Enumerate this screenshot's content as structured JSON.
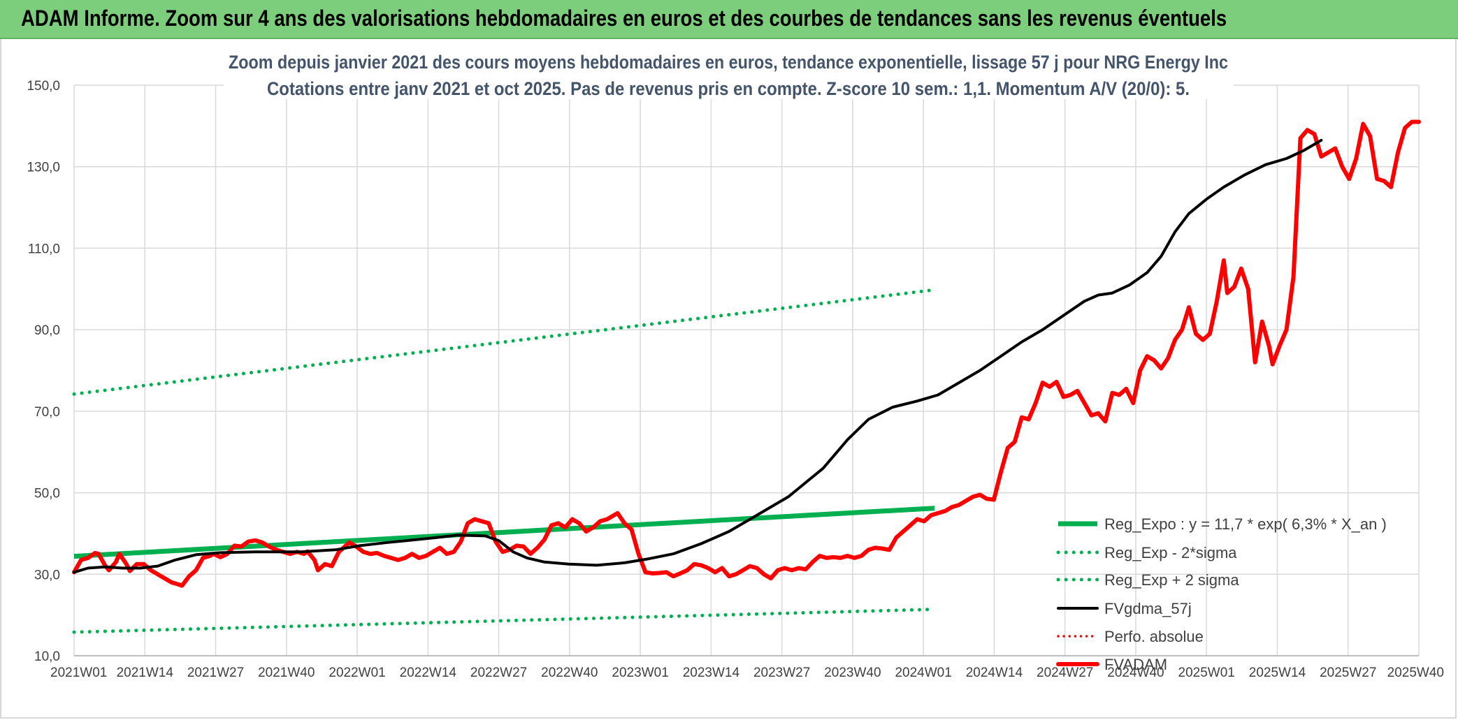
{
  "header": {
    "title": "ADAM Informe. Zoom sur 4 ans des valorisations hebdomadaires en euros et des courbes de tendances sans les revenus éventuels"
  },
  "chart_data": {
    "type": "line",
    "subtitle_line1": "Zoom depuis janvier 2021 des cours moyens hebdomadaires en euros, tendance exponentielle, lissage 57 j pour NRG Energy Inc",
    "subtitle_line2": "Cotations entre janv 2021 et oct 2025. Pas de revenus pris en compte. Z-score 10 sem.: 1,1. Momentum A/V (20/0): 5.",
    "ylim": [
      10,
      150
    ],
    "y_ticks": [
      "150,0",
      "130,0",
      "110,0",
      "90,0",
      "70,0",
      "50,0",
      "30,0",
      "10,0"
    ],
    "y_tick_values": [
      150,
      130,
      110,
      90,
      70,
      50,
      30,
      10
    ],
    "x_ticks": [
      "2021W01",
      "2021W14",
      "2021W27",
      "2021W40",
      "2022W01",
      "2022W14",
      "2022W27",
      "2022W40",
      "2023W01",
      "2023W14",
      "2023W27",
      "2023W40",
      "2024W01",
      "2024W14",
      "2024W27",
      "2024W40",
      "2025W01",
      "2025W14",
      "2025W27",
      "2025W40"
    ],
    "grid": true,
    "legend_position": "bottom-right",
    "colors": {
      "reg_expo": "#00b050",
      "bands": "#00b050",
      "fvgdma": "#000000",
      "perfo": "#ff0000",
      "fvadam": "#ff0000",
      "grid": "#d9d9d9",
      "banner": "#7ccd7c"
    },
    "series": [
      {
        "name": "Reg_Expo : y = 11,7 * exp( 6,3% *  X_an )",
        "style": "solid-thick",
        "points": [
          [
            0,
            34.4
          ],
          [
            247,
            46.2
          ]
        ]
      },
      {
        "name": "Reg_Exp - 2*sigma",
        "style": "dotted",
        "points": [
          [
            0,
            15.8
          ],
          [
            247,
            21.4
          ]
        ]
      },
      {
        "name": "Reg_Exp + 2 sigma",
        "style": "dotted",
        "points": [
          [
            0,
            74.2
          ],
          [
            247,
            99.8
          ]
        ]
      },
      {
        "name": "FVgdma_57j",
        "style": "solid",
        "points": [
          [
            0,
            30.5
          ],
          [
            4,
            31.5
          ],
          [
            9,
            31.8
          ],
          [
            14,
            31.5
          ],
          [
            19,
            31.5
          ],
          [
            24,
            32.0
          ],
          [
            29,
            33.5
          ],
          [
            35,
            34.8
          ],
          [
            42,
            35.3
          ],
          [
            52,
            35.5
          ],
          [
            65,
            35.5
          ],
          [
            75,
            36.0
          ],
          [
            82,
            37.0
          ],
          [
            90,
            37.8
          ],
          [
            95,
            38.2
          ],
          [
            104,
            39.0
          ],
          [
            110,
            39.6
          ],
          [
            118,
            39.4
          ],
          [
            122,
            38.2
          ],
          [
            126,
            35.5
          ],
          [
            130,
            34.0
          ],
          [
            135,
            33.0
          ],
          [
            142,
            32.5
          ],
          [
            150,
            32.2
          ],
          [
            158,
            32.8
          ],
          [
            165,
            33.8
          ],
          [
            172,
            35.0
          ],
          [
            180,
            37.5
          ],
          [
            188,
            40.5
          ],
          [
            195,
            44.0
          ],
          [
            205,
            49.0
          ],
          [
            215,
            56.0
          ],
          [
            222,
            63.0
          ],
          [
            228,
            68.0
          ],
          [
            235,
            71.0
          ],
          [
            242,
            72.5
          ],
          [
            248,
            74.0
          ],
          [
            254,
            77.0
          ],
          [
            260,
            80.0
          ],
          [
            266,
            83.5
          ],
          [
            272,
            87.0
          ],
          [
            278,
            90.0
          ],
          [
            284,
            93.5
          ],
          [
            290,
            97.0
          ],
          [
            294,
            98.5
          ],
          [
            298,
            99.0
          ],
          [
            303,
            101.0
          ],
          [
            308,
            104.0
          ],
          [
            312,
            108.0
          ],
          [
            316,
            114.0
          ],
          [
            320,
            118.5
          ],
          [
            325,
            122.0
          ],
          [
            330,
            125.0
          ],
          [
            336,
            128.0
          ],
          [
            342,
            130.5
          ],
          [
            348,
            132.0
          ],
          [
            353,
            134.0
          ],
          [
            358,
            136.5
          ]
        ]
      },
      {
        "name": "Perfo. absolue",
        "style": "dotted",
        "points": []
      },
      {
        "name": "FVADAM",
        "style": "solid-thick",
        "points": [
          [
            0,
            30.5
          ],
          [
            2,
            33.5
          ],
          [
            4,
            34.0
          ],
          [
            6,
            35.2
          ],
          [
            7,
            35.0
          ],
          [
            9,
            32.0
          ],
          [
            10,
            31.0
          ],
          [
            12,
            33.0
          ],
          [
            13,
            35.0
          ],
          [
            15,
            32.5
          ],
          [
            16,
            30.8
          ],
          [
            18,
            32.5
          ],
          [
            20,
            32.5
          ],
          [
            22,
            31.0
          ],
          [
            24,
            30.0
          ],
          [
            26,
            29.0
          ],
          [
            28,
            28.0
          ],
          [
            30,
            27.5
          ],
          [
            31,
            27.2
          ],
          [
            33,
            29.5
          ],
          [
            35,
            31.0
          ],
          [
            37,
            34.0
          ],
          [
            39,
            34.5
          ],
          [
            40,
            35.0
          ],
          [
            42,
            34.2
          ],
          [
            44,
            35.0
          ],
          [
            46,
            37.0
          ],
          [
            48,
            36.8
          ],
          [
            50,
            38.0
          ],
          [
            52,
            38.3
          ],
          [
            54,
            37.8
          ],
          [
            56,
            36.8
          ],
          [
            58,
            36.0
          ],
          [
            60,
            35.5
          ],
          [
            62,
            35.0
          ],
          [
            64,
            35.5
          ],
          [
            66,
            35.0
          ],
          [
            67,
            35.6
          ],
          [
            69,
            33.5
          ],
          [
            70,
            31.0
          ],
          [
            72,
            32.5
          ],
          [
            74,
            32.0
          ],
          [
            76,
            35.5
          ],
          [
            78,
            37.0
          ],
          [
            79,
            37.8
          ],
          [
            81,
            36.8
          ],
          [
            83,
            35.5
          ],
          [
            85,
            35.0
          ],
          [
            87,
            35.2
          ],
          [
            89,
            34.5
          ],
          [
            91,
            34.0
          ],
          [
            93,
            33.5
          ],
          [
            95,
            34.0
          ],
          [
            97,
            35.0
          ],
          [
            99,
            34.0
          ],
          [
            101,
            34.5
          ],
          [
            103,
            35.5
          ],
          [
            105,
            36.5
          ],
          [
            107,
            35.0
          ],
          [
            109,
            35.5
          ],
          [
            111,
            38.0
          ],
          [
            113,
            42.5
          ],
          [
            115,
            43.5
          ],
          [
            117,
            43.0
          ],
          [
            119,
            42.5
          ],
          [
            121,
            38.0
          ],
          [
            123,
            35.5
          ],
          [
            125,
            36.0
          ],
          [
            127,
            37.0
          ],
          [
            129,
            36.8
          ],
          [
            131,
            35.0
          ],
          [
            133,
            36.5
          ],
          [
            135,
            38.5
          ],
          [
            137,
            42.0
          ],
          [
            139,
            42.5
          ],
          [
            141,
            41.5
          ],
          [
            143,
            43.5
          ],
          [
            145,
            42.5
          ],
          [
            147,
            40.5
          ],
          [
            149,
            41.5
          ],
          [
            151,
            43.0
          ],
          [
            153,
            43.5
          ],
          [
            155,
            44.5
          ],
          [
            156,
            45.0
          ],
          [
            158,
            42.5
          ],
          [
            160,
            41.0
          ],
          [
            162,
            35.0
          ],
          [
            164,
            30.5
          ],
          [
            166,
            30.2
          ],
          [
            168,
            30.3
          ],
          [
            170,
            30.5
          ],
          [
            172,
            29.5
          ],
          [
            174,
            30.2
          ],
          [
            176,
            31.0
          ],
          [
            178,
            32.5
          ],
          [
            180,
            32.2
          ],
          [
            182,
            31.5
          ],
          [
            184,
            30.5
          ],
          [
            186,
            31.5
          ],
          [
            188,
            29.5
          ],
          [
            190,
            30.0
          ],
          [
            192,
            31.0
          ],
          [
            194,
            32.0
          ],
          [
            196,
            31.5
          ],
          [
            198,
            30.0
          ],
          [
            200,
            29.0
          ],
          [
            202,
            31.0
          ],
          [
            204,
            31.5
          ],
          [
            206,
            31.0
          ],
          [
            208,
            31.5
          ],
          [
            210,
            31.2
          ],
          [
            212,
            33.0
          ],
          [
            214,
            34.5
          ],
          [
            216,
            34.0
          ],
          [
            218,
            34.2
          ],
          [
            220,
            34.0
          ],
          [
            222,
            34.5
          ],
          [
            224,
            34.0
          ],
          [
            226,
            34.5
          ],
          [
            228,
            36.0
          ],
          [
            230,
            36.5
          ],
          [
            232,
            36.3
          ],
          [
            234,
            36.0
          ],
          [
            236,
            39.0
          ],
          [
            238,
            40.5
          ],
          [
            240,
            42.0
          ],
          [
            242,
            43.5
          ],
          [
            244,
            43.0
          ],
          [
            246,
            44.5
          ],
          [
            248,
            45.0
          ],
          [
            250,
            45.5
          ],
          [
            252,
            46.5
          ],
          [
            254,
            47.0
          ],
          [
            256,
            48.0
          ],
          [
            258,
            49.0
          ],
          [
            260,
            49.5
          ],
          [
            262,
            48.5
          ],
          [
            264,
            48.3
          ],
          [
            266,
            55.0
          ],
          [
            268,
            61.0
          ],
          [
            270,
            62.5
          ],
          [
            272,
            68.5
          ],
          [
            274,
            68.0
          ],
          [
            276,
            72.0
          ],
          [
            278,
            77.0
          ],
          [
            280,
            76.0
          ],
          [
            282,
            77.2
          ],
          [
            284,
            73.5
          ],
          [
            286,
            74.0
          ],
          [
            288,
            75.0
          ],
          [
            290,
            72.0
          ],
          [
            292,
            69.0
          ],
          [
            294,
            69.5
          ],
          [
            296,
            67.5
          ],
          [
            298,
            74.5
          ],
          [
            300,
            74.0
          ],
          [
            302,
            75.5
          ],
          [
            304,
            72.0
          ],
          [
            306,
            80.0
          ],
          [
            308,
            83.5
          ],
          [
            310,
            82.5
          ],
          [
            312,
            80.5
          ],
          [
            314,
            83.0
          ],
          [
            316,
            87.5
          ],
          [
            318,
            90.0
          ],
          [
            320,
            95.5
          ],
          [
            322,
            89.0
          ],
          [
            324,
            87.5
          ],
          [
            326,
            89.0
          ],
          [
            328,
            97.0
          ],
          [
            330,
            107.0
          ],
          [
            331,
            99.0
          ],
          [
            333,
            100.5
          ],
          [
            335,
            105.0
          ],
          [
            337,
            100.0
          ],
          [
            339,
            82.0
          ],
          [
            341,
            92.0
          ],
          [
            343,
            86.0
          ],
          [
            344,
            81.5
          ],
          [
            346,
            86.0
          ],
          [
            348,
            90.0
          ],
          [
            350,
            103.0
          ],
          [
            352,
            137.0
          ],
          [
            354,
            139.0
          ],
          [
            356,
            138.0
          ],
          [
            358,
            132.5
          ],
          [
            360,
            133.5
          ],
          [
            362,
            134.5
          ],
          [
            364,
            130.0
          ],
          [
            366,
            127.0
          ],
          [
            368,
            132.0
          ],
          [
            370,
            140.5
          ],
          [
            372,
            137.5
          ],
          [
            374,
            127.0
          ],
          [
            376,
            126.5
          ],
          [
            378,
            125.0
          ],
          [
            380,
            133.5
          ],
          [
            382,
            139.5
          ],
          [
            384,
            141.0
          ],
          [
            386,
            141.0
          ]
        ]
      }
    ]
  }
}
